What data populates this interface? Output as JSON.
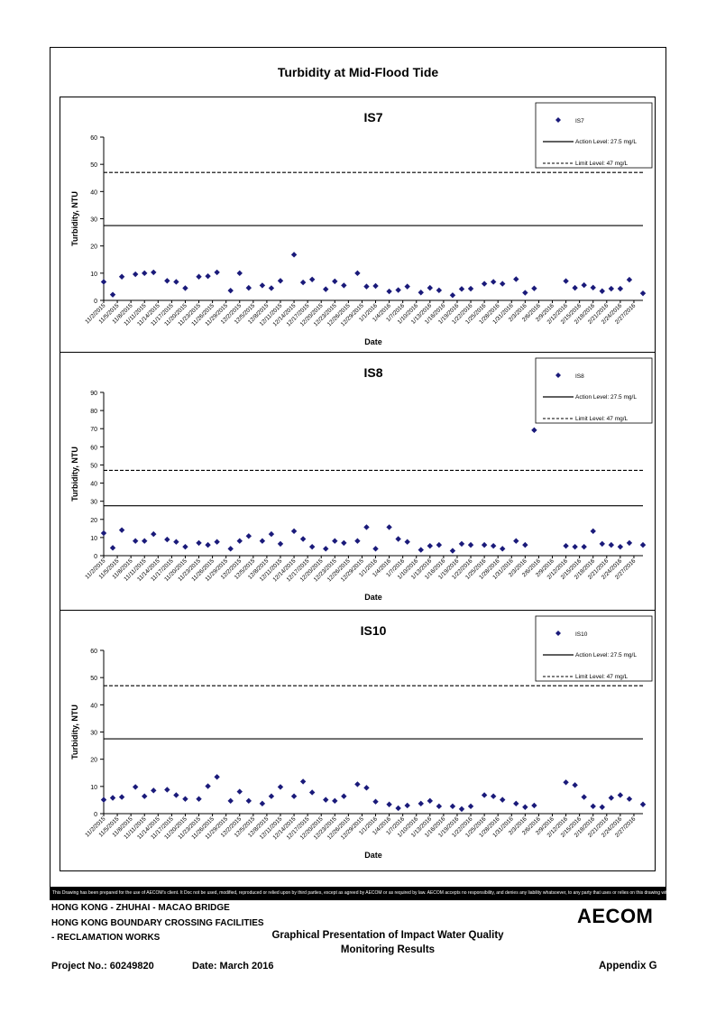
{
  "page": {
    "title": "Turbidity at Mid-Flood Tide",
    "disclaimer": "This Drawing has been prepared for the use of AECOM's client. It Doc not be used, modified, reproduced or relied upon by third parties, except as agreed by AECOM or as required by law. AECOM accepts no responsibility, and denies any liability whatsoever, to any party that uses or relies on this drawing without AECOM's express written consent."
  },
  "footer": {
    "line1": "HONG KONG - ZHUHAI - MACAO BRIDGE",
    "line2": "HONG KONG BOUNDARY CROSSING FACILITIES",
    "line3": "- RECLAMATION WORKS",
    "subject1": "Graphical Presentation of Impact Water Quality",
    "subject2": "Monitoring Results",
    "project": "Project No.: 60249820",
    "date": "Date: March 2016",
    "appendix": "Appendix G",
    "logo": "AECOM"
  },
  "chart_data": [
    {
      "type": "scatter",
      "title": "IS7",
      "xlabel": "Date",
      "ylabel": "Turbidity, NTU",
      "ylim": [
        0,
        60
      ],
      "yticks": [
        0,
        10,
        20,
        30,
        40,
        50,
        60
      ],
      "date_range": [
        "11/2/2015",
        "2/29/2016"
      ],
      "xtick_labels": [
        "11/2/2015",
        "11/5/2015",
        "11/8/2015",
        "11/11/2015",
        "11/14/2015",
        "11/17/2015",
        "11/20/2015",
        "11/23/2015",
        "11/26/2015",
        "11/29/2015",
        "12/2/2015",
        "12/5/2015",
        "12/8/2015",
        "12/11/2015",
        "12/14/2015",
        "12/17/2015",
        "12/20/2015",
        "12/23/2015",
        "12/26/2015",
        "12/29/2015",
        "1/1/2016",
        "1/4/2016",
        "1/7/2016",
        "1/10/2016",
        "1/13/2016",
        "1/16/2016",
        "1/19/2016",
        "1/22/2016",
        "1/25/2016",
        "1/28/2016",
        "1/31/2016",
        "2/3/2016",
        "2/6/2016",
        "2/9/2016",
        "2/12/2016",
        "2/15/2016",
        "2/18/2016",
        "2/21/2016",
        "2/24/2016",
        "2/27/2016"
      ],
      "legend": {
        "placement": "top-right",
        "series": "IS7",
        "action": "Action Level: 27.5 mg/L",
        "limit": "Limit Level: 47 mg/L"
      },
      "action_level": 27.5,
      "limit_level": 47,
      "points": [
        {
          "x": "11/2/2015",
          "y": 6.8
        },
        {
          "x": "11/4/2015",
          "y": 2.1
        },
        {
          "x": "11/6/2015",
          "y": 8.7
        },
        {
          "x": "11/9/2015",
          "y": 9.6
        },
        {
          "x": "11/11/2015",
          "y": 10
        },
        {
          "x": "11/13/2015",
          "y": 10.3
        },
        {
          "x": "11/16/2015",
          "y": 7.2
        },
        {
          "x": "11/18/2015",
          "y": 6.8
        },
        {
          "x": "11/20/2015",
          "y": 4.5
        },
        {
          "x": "11/23/2015",
          "y": 8.7
        },
        {
          "x": "11/25/2015",
          "y": 8.9
        },
        {
          "x": "11/27/2015",
          "y": 10.3
        },
        {
          "x": "11/30/2015",
          "y": 3.6
        },
        {
          "x": "12/2/2015",
          "y": 10
        },
        {
          "x": "12/4/2015",
          "y": 4.6
        },
        {
          "x": "12/7/2015",
          "y": 5.5
        },
        {
          "x": "12/9/2015",
          "y": 4.5
        },
        {
          "x": "12/11/2015",
          "y": 7.2
        },
        {
          "x": "12/14/2015",
          "y": 16.8
        },
        {
          "x": "12/16/2015",
          "y": 6.6
        },
        {
          "x": "12/18/2015",
          "y": 7.7
        },
        {
          "x": "12/21/2015",
          "y": 4.1
        },
        {
          "x": "12/23/2015",
          "y": 7
        },
        {
          "x": "12/25/2015",
          "y": 5.5
        },
        {
          "x": "12/28/2015",
          "y": 10
        },
        {
          "x": "12/30/2015",
          "y": 5.1
        },
        {
          "x": "1/1/2016",
          "y": 5.3
        },
        {
          "x": "1/4/2016",
          "y": 3.3
        },
        {
          "x": "1/6/2016",
          "y": 3.8
        },
        {
          "x": "1/8/2016",
          "y": 5.1
        },
        {
          "x": "1/11/2016",
          "y": 2.9
        },
        {
          "x": "1/13/2016",
          "y": 4.6
        },
        {
          "x": "1/15/2016",
          "y": 3.7
        },
        {
          "x": "1/18/2016",
          "y": 1.9
        },
        {
          "x": "1/20/2016",
          "y": 4.2
        },
        {
          "x": "1/22/2016",
          "y": 4.3
        },
        {
          "x": "1/25/2016",
          "y": 6.1
        },
        {
          "x": "1/27/2016",
          "y": 6.8
        },
        {
          "x": "1/29/2016",
          "y": 6.1
        },
        {
          "x": "2/1/2016",
          "y": 7.8
        },
        {
          "x": "2/3/2016",
          "y": 2.8
        },
        {
          "x": "2/5/2016",
          "y": 4.4
        },
        {
          "x": "2/12/2016",
          "y": 7.1
        },
        {
          "x": "2/14/2016",
          "y": 4.6
        },
        {
          "x": "2/16/2016",
          "y": 5.6
        },
        {
          "x": "2/18/2016",
          "y": 4.7
        },
        {
          "x": "2/20/2016",
          "y": 3.4
        },
        {
          "x": "2/22/2016",
          "y": 4.3
        },
        {
          "x": "2/24/2016",
          "y": 4.3
        },
        {
          "x": "2/26/2016",
          "y": 7.6
        },
        {
          "x": "2/29/2016",
          "y": 2.6
        }
      ]
    },
    {
      "type": "scatter",
      "title": "IS8",
      "xlabel": "Date",
      "ylabel": "Turbidity, NTU",
      "ylim": [
        0,
        90
      ],
      "yticks": [
        0,
        10,
        20,
        30,
        40,
        50,
        60,
        70,
        80,
        90
      ],
      "date_range": [
        "11/2/2015",
        "2/29/2016"
      ],
      "xtick_labels": [
        "11/2/2015",
        "11/5/2015",
        "11/8/2015",
        "11/11/2015",
        "11/14/2015",
        "11/17/2015",
        "11/20/2015",
        "11/23/2015",
        "11/26/2015",
        "11/29/2015",
        "12/2/2015",
        "12/5/2015",
        "12/8/2015",
        "12/11/2015",
        "12/14/2015",
        "12/17/2015",
        "12/20/2015",
        "12/23/2015",
        "12/26/2015",
        "12/29/2015",
        "1/1/2016",
        "1/4/2016",
        "1/7/2016",
        "1/10/2016",
        "1/13/2016",
        "1/16/2016",
        "1/19/2016",
        "1/22/2016",
        "1/25/2016",
        "1/28/2016",
        "1/31/2016",
        "2/3/2016",
        "2/6/2016",
        "2/9/2016",
        "2/12/2016",
        "2/15/2016",
        "2/18/2016",
        "2/21/2016",
        "2/24/2016",
        "2/27/2016"
      ],
      "legend": {
        "placement": "top-right",
        "series": "IS8",
        "action": "Action Level: 27.5 mg/L",
        "limit": "Limit Level: 47 mg/L"
      },
      "action_level": 27.5,
      "limit_level": 47,
      "points": [
        {
          "x": "11/2/2015",
          "y": 12.4
        },
        {
          "x": "11/4/2015",
          "y": 4.3
        },
        {
          "x": "11/6/2015",
          "y": 14.1
        },
        {
          "x": "11/9/2015",
          "y": 8.1
        },
        {
          "x": "11/11/2015",
          "y": 8.1
        },
        {
          "x": "11/13/2015",
          "y": 11.9
        },
        {
          "x": "11/16/2015",
          "y": 8.9
        },
        {
          "x": "11/18/2015",
          "y": 7.6
        },
        {
          "x": "11/20/2015",
          "y": 4.9
        },
        {
          "x": "11/23/2015",
          "y": 7
        },
        {
          "x": "11/25/2015",
          "y": 5.9
        },
        {
          "x": "11/27/2015",
          "y": 7.6
        },
        {
          "x": "11/30/2015",
          "y": 3.8
        },
        {
          "x": "12/2/2015",
          "y": 8.1
        },
        {
          "x": "12/4/2015",
          "y": 10.8
        },
        {
          "x": "12/7/2015",
          "y": 8.1
        },
        {
          "x": "12/9/2015",
          "y": 11.9
        },
        {
          "x": "12/11/2015",
          "y": 6.5
        },
        {
          "x": "12/14/2015",
          "y": 13.5
        },
        {
          "x": "12/16/2015",
          "y": 9.2
        },
        {
          "x": "12/18/2015",
          "y": 4.9
        },
        {
          "x": "12/21/2015",
          "y": 3.8
        },
        {
          "x": "12/23/2015",
          "y": 8.1
        },
        {
          "x": "12/25/2015",
          "y": 7
        },
        {
          "x": "12/28/2015",
          "y": 8.1
        },
        {
          "x": "12/30/2015",
          "y": 15.7
        },
        {
          "x": "1/1/2016",
          "y": 3.8
        },
        {
          "x": "1/4/2016",
          "y": 15.7
        },
        {
          "x": "1/6/2016",
          "y": 9.2
        },
        {
          "x": "1/8/2016",
          "y": 7.6
        },
        {
          "x": "1/11/2016",
          "y": 3.2
        },
        {
          "x": "1/13/2016",
          "y": 5.4
        },
        {
          "x": "1/15/2016",
          "y": 5.9
        },
        {
          "x": "1/18/2016",
          "y": 2.7
        },
        {
          "x": "1/20/2016",
          "y": 6.5
        },
        {
          "x": "1/22/2016",
          "y": 5.9
        },
        {
          "x": "1/25/2016",
          "y": 5.9
        },
        {
          "x": "1/27/2016",
          "y": 5.4
        },
        {
          "x": "1/29/2016",
          "y": 3.8
        },
        {
          "x": "2/1/2016",
          "y": 8.1
        },
        {
          "x": "2/3/2016",
          "y": 5.9
        },
        {
          "x": "2/5/2016",
          "y": 69.2
        },
        {
          "x": "2/12/2016",
          "y": 5.4
        },
        {
          "x": "2/14/2016",
          "y": 4.9
        },
        {
          "x": "2/16/2016",
          "y": 4.9
        },
        {
          "x": "2/18/2016",
          "y": 13.5
        },
        {
          "x": "2/20/2016",
          "y": 6.5
        },
        {
          "x": "2/22/2016",
          "y": 5.9
        },
        {
          "x": "2/24/2016",
          "y": 4.9
        },
        {
          "x": "2/26/2016",
          "y": 7
        },
        {
          "x": "2/29/2016",
          "y": 5.9
        }
      ]
    },
    {
      "type": "scatter",
      "title": "IS10",
      "xlabel": "Date",
      "ylabel": "Turbidity, NTU",
      "ylim": [
        0,
        60
      ],
      "yticks": [
        0,
        10,
        20,
        30,
        40,
        50,
        60
      ],
      "date_range": [
        "11/2/2015",
        "2/29/2016"
      ],
      "xtick_labels": [
        "11/2/2015",
        "11/5/2015",
        "11/8/2015",
        "11/11/2015",
        "11/14/2015",
        "11/17/2015",
        "11/20/2015",
        "11/23/2015",
        "11/26/2015",
        "11/29/2015",
        "12/2/2015",
        "12/5/2015",
        "12/8/2015",
        "12/11/2015",
        "12/14/2015",
        "12/17/2015",
        "12/20/2015",
        "12/23/2015",
        "12/26/2015",
        "12/29/2015",
        "1/1/2016",
        "1/4/2016",
        "1/7/2016",
        "1/10/2016",
        "1/13/2016",
        "1/16/2016",
        "1/19/2016",
        "1/22/2016",
        "1/25/2016",
        "1/28/2016",
        "1/31/2016",
        "2/3/2016",
        "2/6/2016",
        "2/9/2016",
        "2/12/2016",
        "2/15/2016",
        "2/18/2016",
        "2/21/2016",
        "2/24/2016",
        "2/27/2016"
      ],
      "legend": {
        "placement": "top-right",
        "series": "IS10",
        "action": "Action Level: 27.5 mg/L",
        "limit": "Limit Level: 47 mg/L"
      },
      "action_level": 27.5,
      "limit_level": 47,
      "points": [
        {
          "x": "11/2/2015",
          "y": 5.1
        },
        {
          "x": "11/4/2015",
          "y": 5.8
        },
        {
          "x": "11/6/2015",
          "y": 6.1
        },
        {
          "x": "11/9/2015",
          "y": 9.8
        },
        {
          "x": "11/11/2015",
          "y": 6.4
        },
        {
          "x": "11/13/2015",
          "y": 8.5
        },
        {
          "x": "11/16/2015",
          "y": 8.8
        },
        {
          "x": "11/18/2015",
          "y": 6.8
        },
        {
          "x": "11/20/2015",
          "y": 5.4
        },
        {
          "x": "11/23/2015",
          "y": 5.4
        },
        {
          "x": "11/25/2015",
          "y": 10.1
        },
        {
          "x": "11/27/2015",
          "y": 13.5
        },
        {
          "x": "11/30/2015",
          "y": 4.7
        },
        {
          "x": "12/2/2015",
          "y": 8.1
        },
        {
          "x": "12/4/2015",
          "y": 4.7
        },
        {
          "x": "12/7/2015",
          "y": 3.7
        },
        {
          "x": "12/9/2015",
          "y": 6.4
        },
        {
          "x": "12/11/2015",
          "y": 9.8
        },
        {
          "x": "12/14/2015",
          "y": 6.4
        },
        {
          "x": "12/16/2015",
          "y": 11.8
        },
        {
          "x": "12/18/2015",
          "y": 7.8
        },
        {
          "x": "12/21/2015",
          "y": 5.1
        },
        {
          "x": "12/23/2015",
          "y": 4.7
        },
        {
          "x": "12/25/2015",
          "y": 6.4
        },
        {
          "x": "12/28/2015",
          "y": 10.8
        },
        {
          "x": "12/30/2015",
          "y": 9.5
        },
        {
          "x": "1/1/2016",
          "y": 4.4
        },
        {
          "x": "1/4/2016",
          "y": 3.4
        },
        {
          "x": "1/6/2016",
          "y": 2
        },
        {
          "x": "1/8/2016",
          "y": 3
        },
        {
          "x": "1/11/2016",
          "y": 3.7
        },
        {
          "x": "1/13/2016",
          "y": 4.7
        },
        {
          "x": "1/15/2016",
          "y": 2.7
        },
        {
          "x": "1/18/2016",
          "y": 2.7
        },
        {
          "x": "1/20/2016",
          "y": 1.7
        },
        {
          "x": "1/22/2016",
          "y": 2.7
        },
        {
          "x": "1/25/2016",
          "y": 6.8
        },
        {
          "x": "1/27/2016",
          "y": 6.4
        },
        {
          "x": "1/29/2016",
          "y": 5.1
        },
        {
          "x": "2/1/2016",
          "y": 3.7
        },
        {
          "x": "2/3/2016",
          "y": 2.4
        },
        {
          "x": "2/5/2016",
          "y": 3
        },
        {
          "x": "2/12/2016",
          "y": 11.5
        },
        {
          "x": "2/14/2016",
          "y": 10.5
        },
        {
          "x": "2/16/2016",
          "y": 6.1
        },
        {
          "x": "2/18/2016",
          "y": 2.7
        },
        {
          "x": "2/20/2016",
          "y": 2.4
        },
        {
          "x": "2/22/2016",
          "y": 5.8
        },
        {
          "x": "2/24/2016",
          "y": 6.8
        },
        {
          "x": "2/26/2016",
          "y": 5.4
        },
        {
          "x": "2/29/2016",
          "y": 3.4
        }
      ]
    }
  ],
  "colors": {
    "marker": "#1a1a7a",
    "line": "#000000"
  }
}
